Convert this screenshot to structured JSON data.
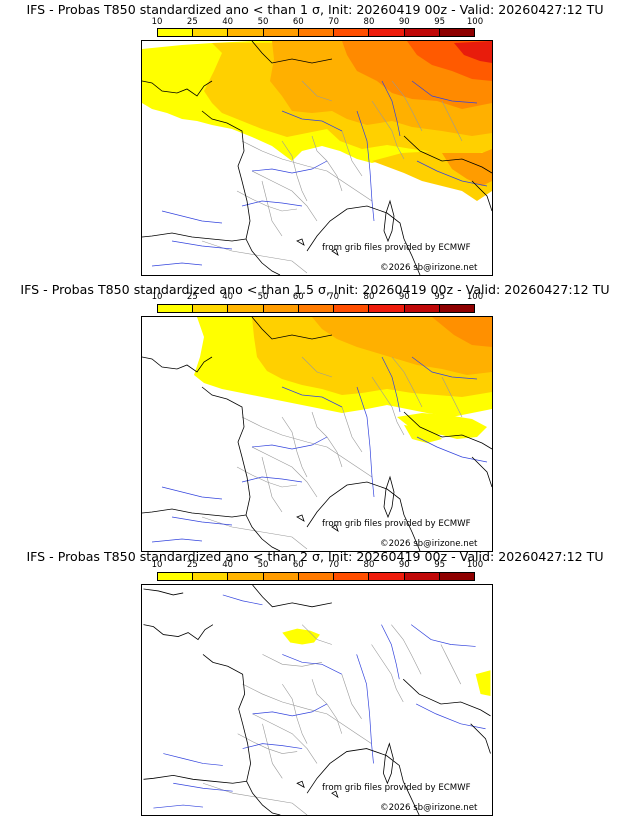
{
  "colorbar": {
    "tick_labels": [
      "10",
      "25",
      "40",
      "50",
      "60",
      "70",
      "80",
      "90",
      "95",
      "100"
    ],
    "colors": [
      "#ffff00",
      "#ffd800",
      "#ffb400",
      "#ff9c00",
      "#ff7a00",
      "#ff4e00",
      "#ee1c0c",
      "#c00808",
      "#8e0000",
      "#580000"
    ]
  },
  "panels": [
    {
      "title": "IFS - Probas T850  standardized ano < than 1 σ, Init: 20260419 00z - Valid: 20260427:12 TU",
      "threshold_sigma": 1,
      "credit_source": "from grib files provided by ECMWF",
      "credit_site": "©2026 sb@irizone.net"
    },
    {
      "title": "IFS - Probas T850  standardized ano < than 1.5 σ, Init: 20260419 00z - Valid: 20260427:12 TU",
      "threshold_sigma": 1.5,
      "credit_source": "from grib files provided by ECMWF",
      "credit_site": "©2026 sb@irizone.net"
    },
    {
      "title": "IFS - Probas T850  standardized ano < than 2 σ, Init: 20260419 00z - Valid: 20260427:12 TU",
      "threshold_sigma": 2,
      "credit_source": "from grib files provided by ECMWF",
      "credit_site": "©2026 sb@irizone.net"
    }
  ],
  "map_colors": {
    "coastline": "#000000",
    "rivers": "#3344dd",
    "borders": "#9a9a9a"
  }
}
